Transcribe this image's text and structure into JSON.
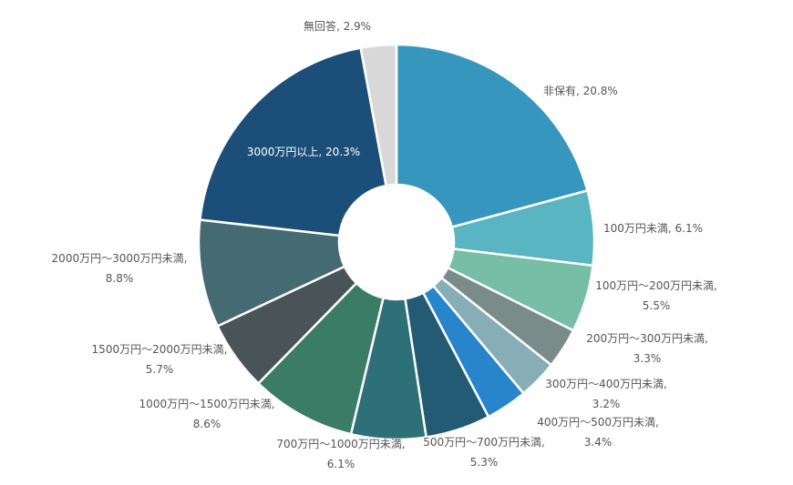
{
  "chart_data": {
    "type": "pie",
    "variant": "donut",
    "title": "",
    "legend": "none",
    "slices": [
      {
        "label": "非保有",
        "value": 20.8,
        "display": "非保有, 20.8%",
        "color": "#3796bd"
      },
      {
        "label": "100万円未満",
        "value": 6.1,
        "display": "100万円未満, 6.1%",
        "color": "#5ab5c2"
      },
      {
        "label": "100万円～200万円未満",
        "value": 5.5,
        "display": "100万円～200万円未満,|5.5%",
        "color": "#76bfa6"
      },
      {
        "label": "200万円～300万円未満",
        "value": 3.3,
        "display": "200万円～300万円未満,|3.3%",
        "color": "#7a8c8a"
      },
      {
        "label": "300万円～400万円未満",
        "value": 3.2,
        "display": "300万円～400万円未満,|3.2%",
        "color": "#87adb6"
      },
      {
        "label": "400万円～500万円未満",
        "value": 3.4,
        "display": "400万円～500万円未満,|3.4%",
        "color": "#2884cb"
      },
      {
        "label": "500万円～700万円未満",
        "value": 5.3,
        "display": "500万円～700万円未満,|5.3%",
        "color": "#225b73"
      },
      {
        "label": "700万円～1000万円未満",
        "value": 6.1,
        "display": "700万円～1000万円未満,|6.1%",
        "color": "#2e7077"
      },
      {
        "label": "1000万円～1500万円未満",
        "value": 8.6,
        "display": "1000万円～1500万円未満,|8.6%",
        "color": "#3b7c66"
      },
      {
        "label": "1500万円～2000万円未満",
        "value": 5.7,
        "display": "1500万円～2000万円未満,|5.7%",
        "color": "#485457"
      },
      {
        "label": "2000万円～3000万円未満",
        "value": 8.8,
        "display": "2000万円～3000万円未満,|8.8%",
        "color": "#446a72"
      },
      {
        "label": "3000万円以上",
        "value": 20.3,
        "display": "3000万円以上, 20.3%",
        "color": "#1b4f79"
      },
      {
        "label": "無回答",
        "value": 2.9,
        "display": "無回答, 2.9%",
        "color": "#d8d8d8"
      }
    ]
  }
}
